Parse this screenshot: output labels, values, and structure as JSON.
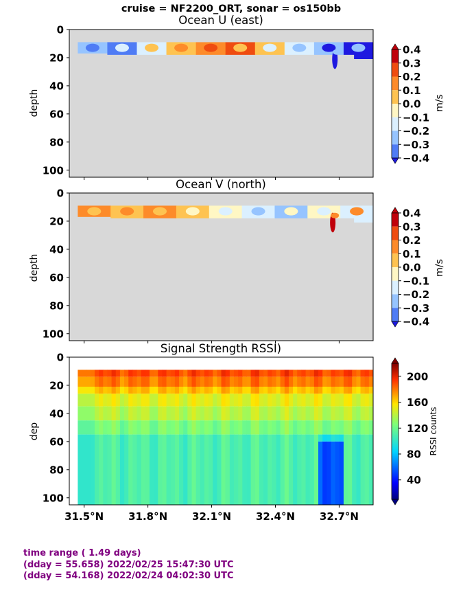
{
  "suptitle": "cruise = NF2200_ORT,  sonar = os150bb",
  "footer": {
    "line1": "time range ( 1.49 days)",
    "line2": "(dday = 55.658) 2022/02/25 15:47:30 UTC",
    "line3": "(dday = 54.168) 2022/02/24 04:02:30 UTC"
  },
  "colors": {
    "no_data": "#d8d8d8",
    "footer_text": "#800080"
  },
  "chart_data": [
    {
      "type": "heatmap",
      "title": "Ocean U (east)",
      "ylabel": "depth",
      "xlim": [
        31.43,
        32.86
      ],
      "ylim": [
        105,
        0
      ],
      "y_ticks": [
        0,
        20,
        40,
        60,
        80,
        100
      ],
      "colorbar": {
        "label": "m/s",
        "ticks": [
          "0.4",
          "0.3",
          "0.2",
          "0.1",
          "0.0",
          "−0.1",
          "−0.2",
          "−0.3",
          "−0.4"
        ],
        "colors": [
          "#c0000a",
          "#ef4c10",
          "#fd8b2a",
          "#fec351",
          "#fff7c4",
          "#dbf0ff",
          "#96c4ff",
          "#4f7cf5",
          "#1e19e0"
        ]
      },
      "data_depth_range": [
        9,
        21
      ],
      "values_mps": [
        -0.2,
        -0.3,
        -0.1,
        0.1,
        0.2,
        0.3,
        0.1,
        -0.1,
        -0.2,
        -0.4
      ],
      "anomaly": {
        "lat": 32.68,
        "depth_range": [
          14,
          28
        ],
        "value": -0.4
      }
    },
    {
      "type": "heatmap",
      "title": "Ocean V (north)",
      "ylabel": "depth",
      "xlim": [
        31.43,
        32.86
      ],
      "ylim": [
        105,
        0
      ],
      "y_ticks": [
        0,
        20,
        40,
        60,
        80,
        100
      ],
      "colorbar": {
        "label": "m/s",
        "ticks": [
          "0.4",
          "0.3",
          "0.2",
          "0.1",
          "0.0",
          "−0.1",
          "−0.2",
          "−0.3",
          "−0.4"
        ],
        "colors": [
          "#c0000a",
          "#ef4c10",
          "#fd8b2a",
          "#fec351",
          "#fff7c4",
          "#dbf0ff",
          "#96c4ff",
          "#4f7cf5",
          "#1e19e0"
        ]
      },
      "data_depth_range": [
        9,
        21
      ],
      "values_mps": [
        0.2,
        0.1,
        0.2,
        0.1,
        0.0,
        -0.1,
        -0.2,
        0.0,
        -0.1
      ],
      "anomaly": {
        "lat": 32.67,
        "depth_range": [
          14,
          28
        ],
        "value": 0.4
      }
    },
    {
      "type": "heatmap",
      "title": "Signal Strength RSSI)",
      "ylabel": "dep",
      "xlabel_ticks": [
        "31.5°N",
        "31.8°N",
        "32.1°N",
        "32.4°N",
        "32.7°N"
      ],
      "x_tick_values": [
        31.5,
        31.8,
        32.1,
        32.4,
        32.7
      ],
      "xlim": [
        31.43,
        32.86
      ],
      "ylim": [
        105,
        0
      ],
      "y_ticks": [
        0,
        20,
        40,
        60,
        80,
        100
      ],
      "colorbar": {
        "label": "RSSI counts",
        "ticks": [
          "200",
          "160",
          "120",
          "80",
          "40"
        ],
        "tick_values": [
          200,
          160,
          120,
          80,
          40
        ],
        "range": [
          10,
          220
        ]
      },
      "depth_profile_counts": [
        {
          "depth_range": [
            9,
            14
          ],
          "counts": 190
        },
        {
          "depth_range": [
            14,
            21
          ],
          "counts": 180
        },
        {
          "depth_range": [
            21,
            26
          ],
          "counts": 165
        },
        {
          "depth_range": [
            26,
            35
          ],
          "counts": 150
        },
        {
          "depth_range": [
            35,
            45
          ],
          "counts": 140
        },
        {
          "depth_range": [
            45,
            55
          ],
          "counts": 125
        },
        {
          "depth_range": [
            55,
            105
          ],
          "counts": 110
        }
      ],
      "low_signal_region": {
        "lat_range": [
          32.6,
          32.72
        ],
        "depth_range": [
          60,
          105
        ],
        "counts": 55
      }
    }
  ]
}
